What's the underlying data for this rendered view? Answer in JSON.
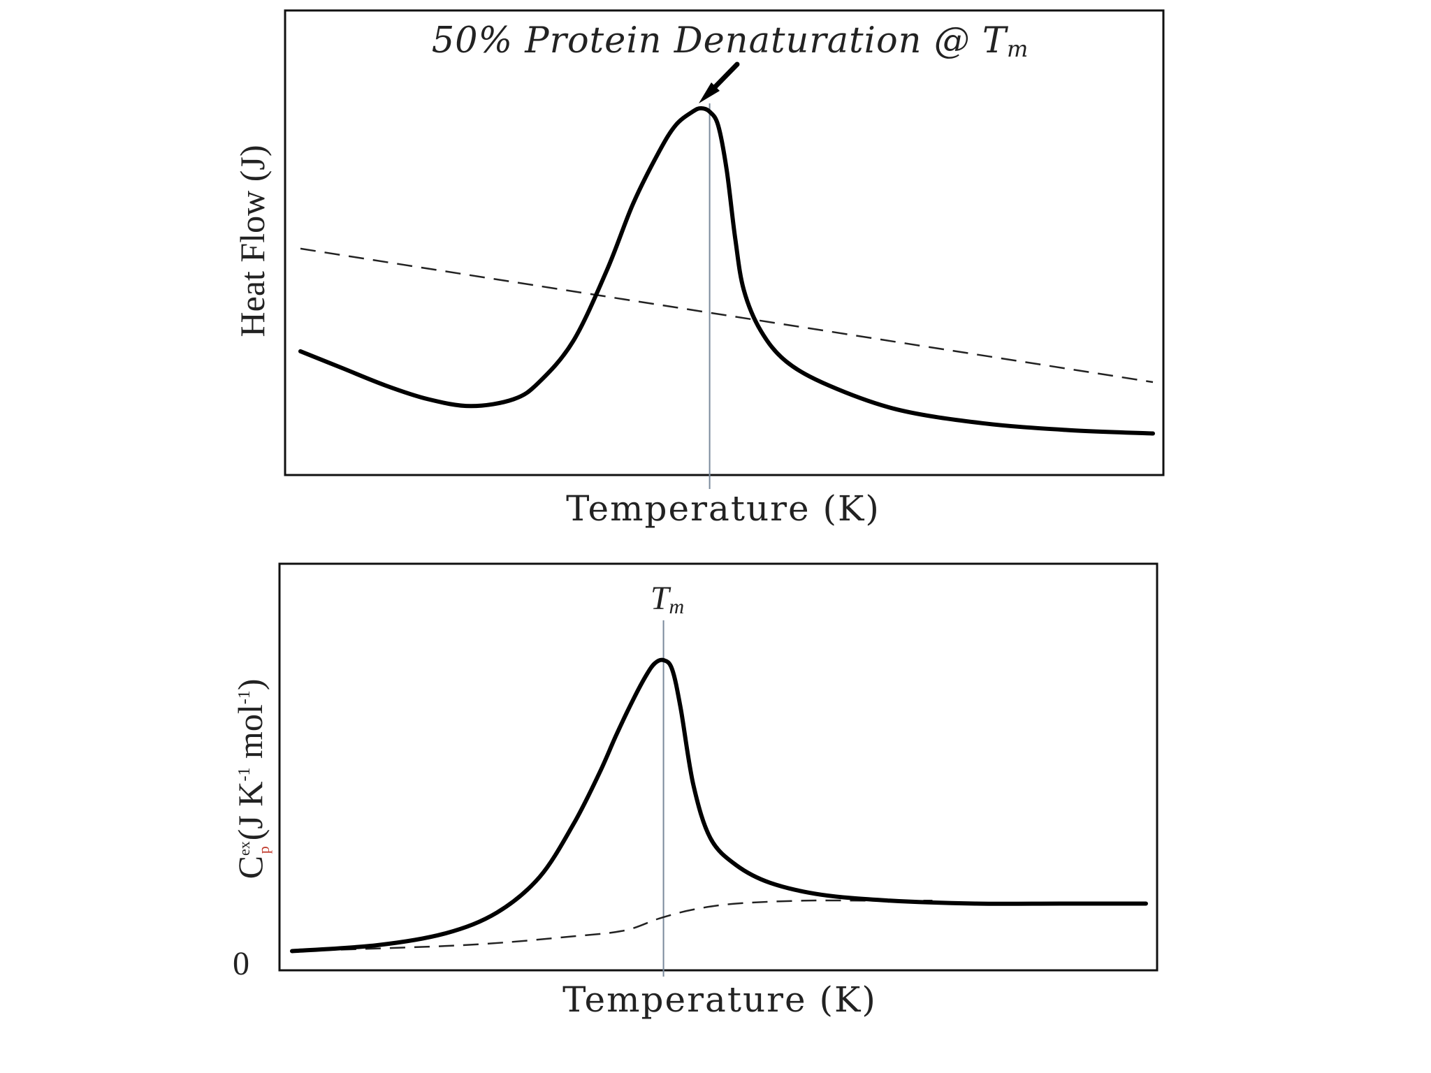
{
  "chart_data": [
    {
      "type": "line",
      "title_prefix": "50% Protein Denaturation @ T",
      "title_sub": "m",
      "xlabel": "Temperature (K)",
      "ylabel": "Heat Flow (J)",
      "marker_label": "",
      "xlim": [
        0,
        1
      ],
      "ylim": [
        0,
        1
      ],
      "tm": 0.48,
      "series": [
        {
          "x": [
            0.0,
            0.05,
            0.1,
            0.15,
            0.2,
            0.25,
            0.28,
            0.32,
            0.36,
            0.39,
            0.42,
            0.44,
            0.46,
            0.47,
            0.48,
            0.49,
            0.5,
            0.51,
            0.52,
            0.54,
            0.57,
            0.62,
            0.7,
            0.8,
            0.9,
            1.0
          ],
          "y": [
            0.29,
            0.24,
            0.19,
            0.15,
            0.13,
            0.15,
            0.2,
            0.32,
            0.53,
            0.72,
            0.87,
            0.95,
            0.99,
            1.0,
            0.99,
            0.95,
            0.82,
            0.62,
            0.47,
            0.35,
            0.26,
            0.19,
            0.12,
            0.08,
            0.06,
            0.05
          ]
        },
        {
          "style": "dashed",
          "x": [
            0.0,
            1.0
          ],
          "y": [
            0.59,
            0.2
          ]
        }
      ]
    },
    {
      "type": "line",
      "title_prefix": "",
      "title_sub": "",
      "xlabel": "Temperature (K)",
      "ylabel": "C",
      "ylabel_super": "ex",
      "ylabel_sub": "p",
      "ylabel_unit": "(J K",
      "ylabel_unit_sup1": "-1",
      "ylabel_unit_mid": " mol",
      "ylabel_unit_sup2": "-1",
      "ylabel_unit_end": ")",
      "y_tick_label": "0",
      "marker_prefix": "T",
      "marker_sub": "m",
      "xlim": [
        0,
        1
      ],
      "ylim": [
        0,
        1
      ],
      "tm": 0.435,
      "series": [
        {
          "x": [
            0.0,
            0.1,
            0.18,
            0.24,
            0.29,
            0.33,
            0.36,
            0.38,
            0.4,
            0.415,
            0.425,
            0.435,
            0.445,
            0.455,
            0.47,
            0.49,
            0.52,
            0.56,
            0.62,
            0.7,
            0.8,
            0.9,
            1.0
          ],
          "y": [
            0.02,
            0.04,
            0.08,
            0.15,
            0.27,
            0.45,
            0.62,
            0.75,
            0.87,
            0.95,
            0.99,
            1.0,
            0.97,
            0.84,
            0.58,
            0.4,
            0.31,
            0.25,
            0.21,
            0.19,
            0.18,
            0.18,
            0.18
          ]
        },
        {
          "style": "dashed",
          "x": [
            0.0,
            0.2,
            0.33,
            0.39,
            0.43,
            0.47,
            0.52,
            0.6,
            0.68,
            0.75
          ],
          "y": [
            0.02,
            0.04,
            0.07,
            0.09,
            0.13,
            0.16,
            0.18,
            0.19,
            0.19,
            0.19
          ]
        }
      ]
    }
  ]
}
